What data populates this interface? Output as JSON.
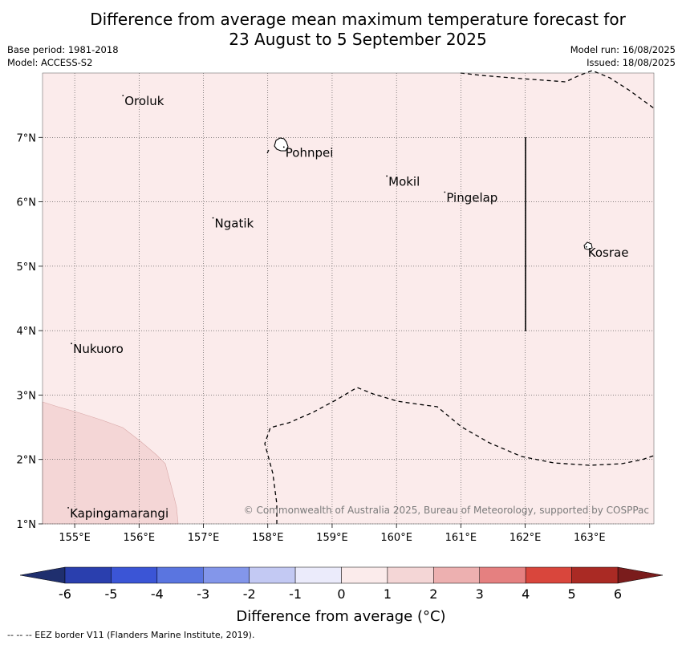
{
  "title_line1": "Difference from average mean maximum temperature forecast for",
  "title_line2": "23 August to 5 September 2025",
  "base_period": "Base period: 1981-2018",
  "model": "Model: ACCESS-S2",
  "model_run": "Model run: 16/08/2025",
  "issued": "Issued: 18/08/2025",
  "copyright": "© Commonwealth of Australia 2025, Bureau of Meteorology, supported by COSPPac",
  "footer": "--  --  -- EEZ border V11 (Flanders Marine Institute, 2019).",
  "map": {
    "lon_range": [
      154.5,
      164.0
    ],
    "lat_range": [
      1.0,
      8.0
    ],
    "lon_ticks": [
      {
        "v": 155,
        "label": "155°E"
      },
      {
        "v": 156,
        "label": "156°E"
      },
      {
        "v": 157,
        "label": "157°E"
      },
      {
        "v": 158,
        "label": "158°E"
      },
      {
        "v": 159,
        "label": "159°E"
      },
      {
        "v": 160,
        "label": "160°E"
      },
      {
        "v": 161,
        "label": "161°E"
      },
      {
        "v": 162,
        "label": "162°E"
      },
      {
        "v": 163,
        "label": "163°E"
      }
    ],
    "lat_ticks": [
      {
        "v": 1,
        "label": "1°N"
      },
      {
        "v": 2,
        "label": "2°N"
      },
      {
        "v": 3,
        "label": "3°N"
      },
      {
        "v": 4,
        "label": "4°N"
      },
      {
        "v": 5,
        "label": "5°N"
      },
      {
        "v": 6,
        "label": "6°N"
      },
      {
        "v": 7,
        "label": "7°N"
      }
    ],
    "background_color": "#fbebeb",
    "anomaly_zone_color": "#f4d6d6",
    "places": [
      {
        "name": "Oroluk",
        "lon": 155.75,
        "lat": 7.65
      },
      {
        "name": "Pohnpei",
        "lon": 158.25,
        "lat": 6.85
      },
      {
        "name": "Mokil",
        "lon": 159.85,
        "lat": 6.4
      },
      {
        "name": "Pingelap",
        "lon": 160.75,
        "lat": 6.15
      },
      {
        "name": "Ngatik",
        "lon": 157.15,
        "lat": 5.75
      },
      {
        "name": "Kosrae",
        "lon": 162.95,
        "lat": 5.3
      },
      {
        "name": "Nukuoro",
        "lon": 154.95,
        "lat": 3.8
      },
      {
        "name": "Kapingamarangi",
        "lon": 154.9,
        "lat": 1.25
      }
    ]
  },
  "colorbar": {
    "label": "Difference from average (°C)",
    "ticks": [
      "-6",
      "-5",
      "-4",
      "-3",
      "-2",
      "-1",
      "0",
      "1",
      "2",
      "3",
      "4",
      "5",
      "6"
    ],
    "under_color": "#1f2f6e",
    "over_color": "#7a1c1c",
    "colors": [
      "#2a3fae",
      "#3b55d6",
      "#5a75e0",
      "#8396ea",
      "#c3c9f3",
      "#ebebfb",
      "#fbebeb",
      "#f4d6d6",
      "#edb0b0",
      "#e58080",
      "#d9463c",
      "#aa2a24"
    ]
  }
}
